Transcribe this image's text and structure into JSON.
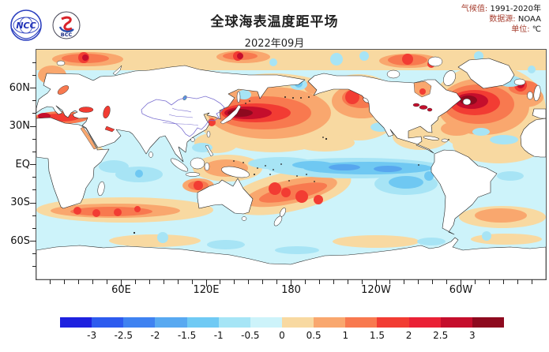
{
  "header": {
    "logos": [
      {
        "name": "ncc",
        "text": "NCC"
      },
      {
        "name": "bcc",
        "text": "BCC"
      }
    ],
    "title": "全球海表温度距平场",
    "subtitle": "2022年09月",
    "meta": [
      {
        "label": "气候值:",
        "value": "1991-2020年"
      },
      {
        "label": "数据源:",
        "value": "NOAA"
      },
      {
        "label": "单位:",
        "value": "℃"
      }
    ]
  },
  "map": {
    "projection": "equirectangular",
    "lon_range": "0E-360E",
    "lat_range": "90S-90N",
    "y_axis": {
      "major": [
        {
          "label": "60N",
          "lat": 60
        },
        {
          "label": "30N",
          "lat": 30
        },
        {
          "label": "EQ",
          "lat": 0
        },
        {
          "label": "30S",
          "lat": -30
        },
        {
          "label": "60S",
          "lat": -60
        }
      ],
      "minor_step_deg": 10
    },
    "x_axis": {
      "major": [
        {
          "label": "60E",
          "lon": 60
        },
        {
          "label": "120E",
          "lon": 120
        },
        {
          "label": "180",
          "lon": 180
        },
        {
          "label": "120W",
          "lon": 240
        },
        {
          "label": "60W",
          "lon": 300
        }
      ],
      "minor_step_deg": 10
    },
    "notable_features": [
      "Large warm anomaly (+2 to >+3) across mid-latitude Northwest Pacific east of Japan",
      "Strong warm anomaly core (>+3) in Northwest Atlantic near Newfoundland",
      "La Nina cold tongue (-1 to -2) along the equatorial central-eastern Pacific",
      "Cool anomaly region in the southeastern Pacific off South America",
      "Warm anomalies in Mediterranean, Arctic marginal seas and Gulf of Alaska",
      "Warm band southwest Pacific toward New Zealand and south of Africa (~40S)"
    ]
  },
  "colorbar": {
    "unit": "℃",
    "tick_labels": [
      "-3",
      "-2.5",
      "-2",
      "-1.5",
      "-1",
      "-0.5",
      "0",
      "0.5",
      "1",
      "1.5",
      "2",
      "2.5",
      "3"
    ],
    "segment_colors": [
      "#1e21df",
      "#2d5bef",
      "#3f82f1",
      "#58a9f1",
      "#70caf4",
      "#a6e5f6",
      "#cdf3fa",
      "#f8d9a1",
      "#f9a76e",
      "#f8794f",
      "#f23c33",
      "#ea2136",
      "#c50e2c",
      "#8e0a1f"
    ]
  },
  "colors": {
    "meta_label": "#a63d2e",
    "axis": "#222222",
    "frame": "#555555",
    "china_boundary": "#7a6fd0",
    "land": "#ffffff",
    "coastline": "#222222"
  }
}
